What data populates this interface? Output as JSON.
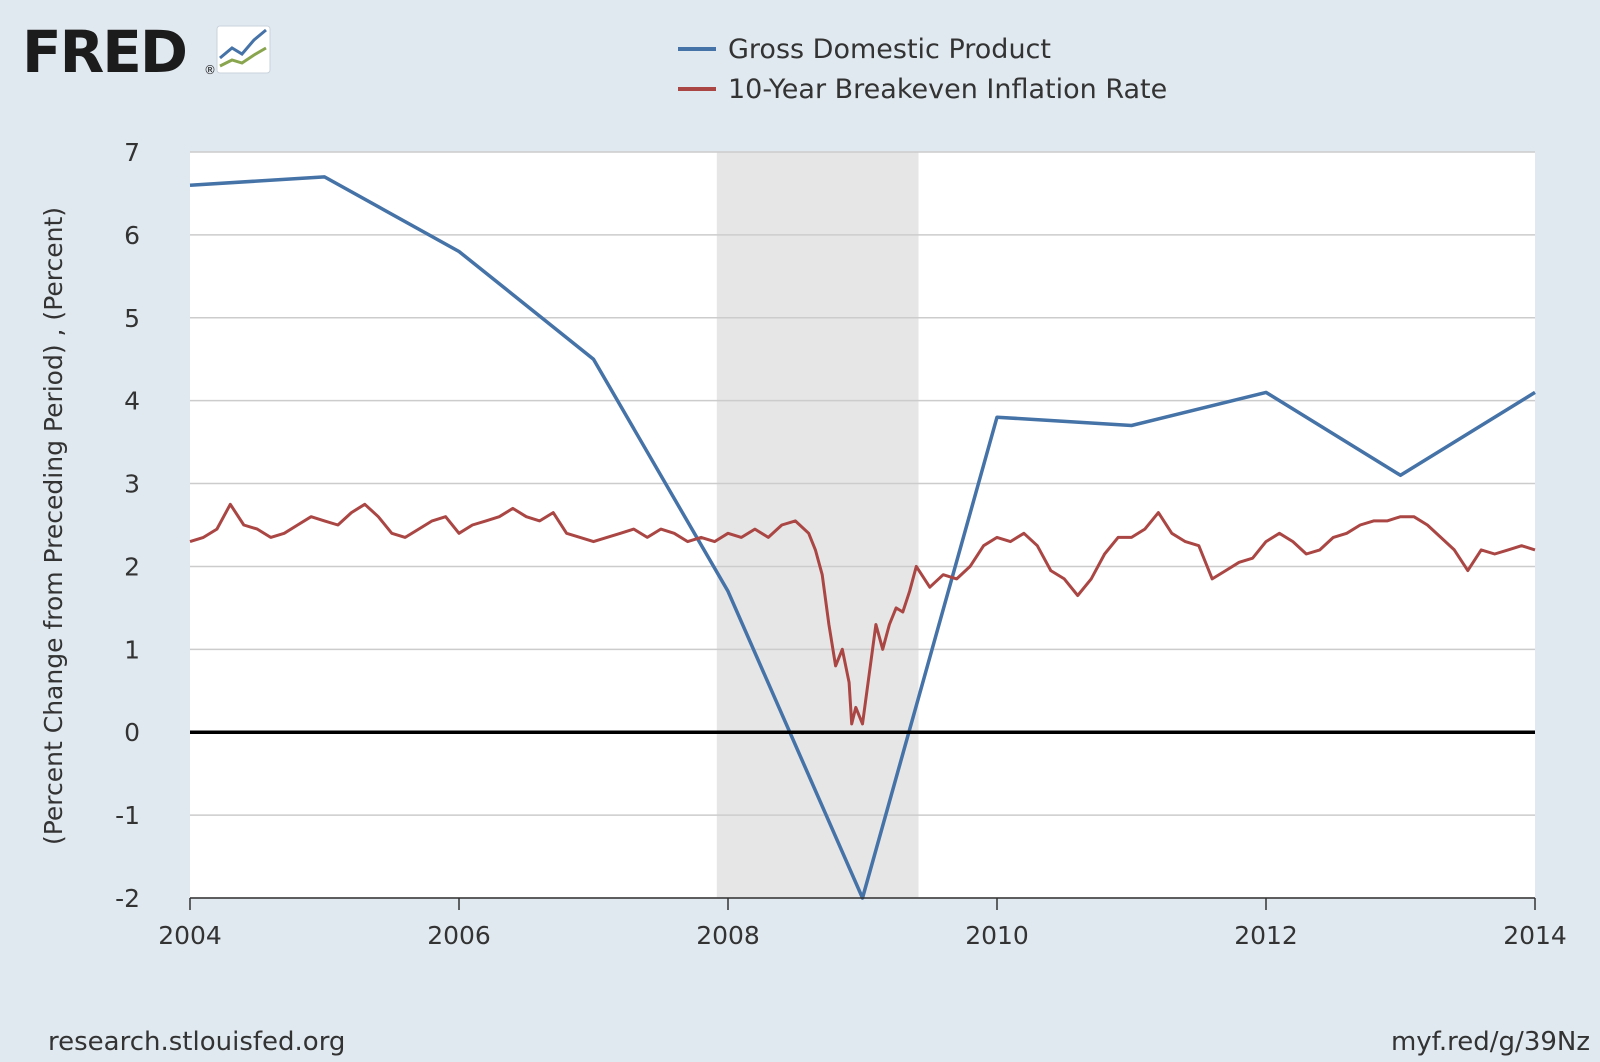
{
  "header": {
    "logo_text": "FRED",
    "logo_mark": "®"
  },
  "footer": {
    "left": "research.stlouisfed.org",
    "right": "myf.red/g/39Nz"
  },
  "colors": {
    "background": "#e1e9f0",
    "plot_background": "#ffffff",
    "recession_shade": "#e6e6e6",
    "gdp": "#4572a7",
    "breakeven": "#aa4643",
    "zero_line": "#000000",
    "grid": "#cccccc"
  },
  "chart_data": {
    "type": "line",
    "title": "",
    "ylabel": "(Percent Change from Preceding Period) , (Percent)",
    "xlabel": "",
    "xlim": [
      2004,
      2014
    ],
    "ylim": [
      -2,
      7
    ],
    "x_ticks": [
      "2004",
      "2006",
      "2008",
      "2010",
      "2012",
      "2014"
    ],
    "y_ticks": [
      "7",
      "6",
      "5",
      "4",
      "3",
      "2",
      "1",
      "0",
      "-1",
      "-2"
    ],
    "grid": true,
    "legend_position": "top",
    "recession_shading": [
      {
        "start": "2007-12",
        "end": "2009-06"
      }
    ],
    "series": [
      {
        "name": "Gross Domestic Product",
        "color": "#4572a7",
        "x": [
          2004,
          2005,
          2006,
          2007,
          2008,
          2009,
          2010,
          2011,
          2012,
          2013,
          2014
        ],
        "values": [
          6.6,
          6.7,
          5.8,
          4.5,
          1.7,
          -2.0,
          3.8,
          3.7,
          4.1,
          3.1,
          4.1
        ]
      },
      {
        "name": "10-Year Breakeven Inflation Rate",
        "color": "#aa4643",
        "x": [
          2004.0,
          2004.1,
          2004.2,
          2004.3,
          2004.4,
          2004.5,
          2004.6,
          2004.7,
          2004.8,
          2004.9,
          2005.0,
          2005.1,
          2005.2,
          2005.3,
          2005.4,
          2005.5,
          2005.6,
          2005.7,
          2005.8,
          2005.9,
          2006.0,
          2006.1,
          2006.2,
          2006.3,
          2006.4,
          2006.5,
          2006.6,
          2006.7,
          2006.8,
          2006.9,
          2007.0,
          2007.1,
          2007.2,
          2007.3,
          2007.4,
          2007.5,
          2007.6,
          2007.7,
          2007.8,
          2007.9,
          2008.0,
          2008.1,
          2008.2,
          2008.3,
          2008.4,
          2008.5,
          2008.6,
          2008.65,
          2008.7,
          2008.75,
          2008.8,
          2008.85,
          2008.9,
          2008.92,
          2008.95,
          2009.0,
          2009.05,
          2009.1,
          2009.15,
          2009.2,
          2009.25,
          2009.3,
          2009.35,
          2009.4,
          2009.5,
          2009.6,
          2009.7,
          2009.8,
          2009.9,
          2010.0,
          2010.1,
          2010.2,
          2010.3,
          2010.4,
          2010.5,
          2010.6,
          2010.7,
          2010.8,
          2010.9,
          2011.0,
          2011.1,
          2011.2,
          2011.3,
          2011.4,
          2011.5,
          2011.6,
          2011.7,
          2011.8,
          2011.9,
          2012.0,
          2012.1,
          2012.2,
          2012.3,
          2012.4,
          2012.5,
          2012.6,
          2012.7,
          2012.8,
          2012.9,
          2013.0,
          2013.1,
          2013.2,
          2013.3,
          2013.4,
          2013.5,
          2013.6,
          2013.7,
          2013.8,
          2013.9,
          2014.0
        ],
        "values": [
          2.3,
          2.35,
          2.45,
          2.75,
          2.5,
          2.45,
          2.35,
          2.4,
          2.5,
          2.6,
          2.55,
          2.5,
          2.65,
          2.75,
          2.6,
          2.4,
          2.35,
          2.45,
          2.55,
          2.6,
          2.4,
          2.5,
          2.55,
          2.6,
          2.7,
          2.6,
          2.55,
          2.65,
          2.4,
          2.35,
          2.3,
          2.35,
          2.4,
          2.45,
          2.35,
          2.45,
          2.4,
          2.3,
          2.35,
          2.3,
          2.4,
          2.35,
          2.45,
          2.35,
          2.5,
          2.55,
          2.4,
          2.2,
          1.9,
          1.3,
          0.8,
          1.0,
          0.6,
          0.1,
          0.3,
          0.1,
          0.7,
          1.3,
          1.0,
          1.3,
          1.5,
          1.45,
          1.7,
          2.0,
          1.75,
          1.9,
          1.85,
          2.0,
          2.25,
          2.35,
          2.3,
          2.4,
          2.25,
          1.95,
          1.85,
          1.65,
          1.85,
          2.15,
          2.35,
          2.35,
          2.45,
          2.65,
          2.4,
          2.3,
          2.25,
          1.85,
          1.95,
          2.05,
          2.1,
          2.3,
          2.4,
          2.3,
          2.15,
          2.2,
          2.35,
          2.4,
          2.5,
          2.55,
          2.55,
          2.6,
          2.6,
          2.5,
          2.35,
          2.2,
          1.95,
          2.2,
          2.15,
          2.2,
          2.25,
          2.2
        ]
      }
    ]
  }
}
